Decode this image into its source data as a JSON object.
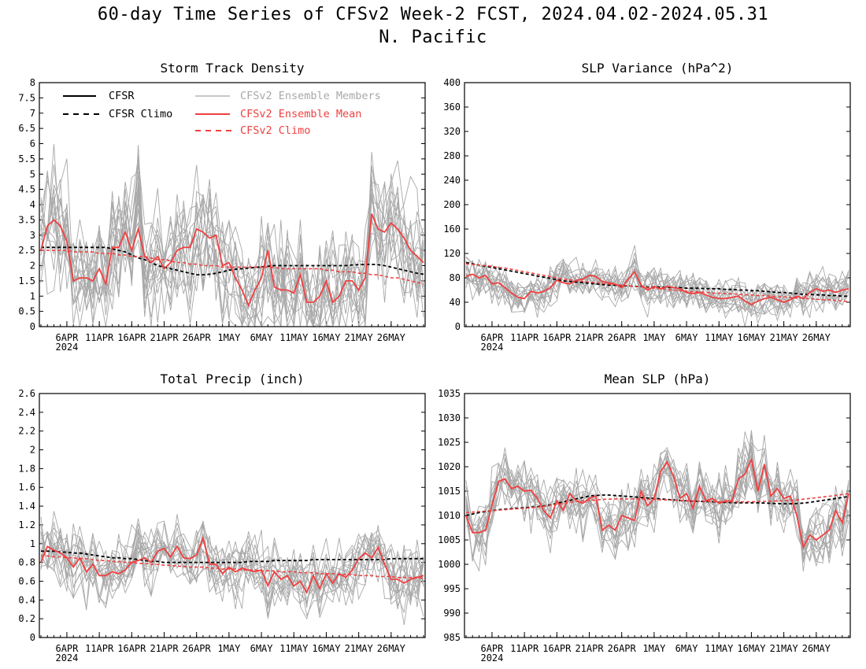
{
  "header": {
    "title": "60-day Time Series of CFSv2 Week-2 FCST, 2024.04.02-2024.05.31",
    "subtitle": "N. Pacific"
  },
  "legend": {
    "cfsr": "CFSR",
    "cfsr_climo": "CFSR Climo",
    "members": "CFSv2 Ensemble Members",
    "mean": "CFSv2 Ensemble Mean",
    "climo": "CFSv2 Climo",
    "colors": {
      "cfsr": "#000000",
      "members": "#a8a8a8",
      "mean": "#f04040",
      "climo": "#f04040"
    }
  },
  "chart_data": [
    {
      "type": "line",
      "title": "Storm Track Density",
      "ylim": [
        0,
        8
      ],
      "yticks": [
        "0",
        "0.5",
        "1",
        "1.5",
        "2",
        "2.5",
        "3",
        "3.5",
        "4",
        "4.5",
        "5",
        "5.5",
        "6",
        "6.5",
        "7",
        "7.5",
        "8"
      ],
      "xlim": [
        0,
        59
      ],
      "xticks": [
        {
          "x": 4,
          "label": "6APR",
          "sub": "2024"
        },
        {
          "x": 9,
          "label": "11APR"
        },
        {
          "x": 14,
          "label": "16APR"
        },
        {
          "x": 19,
          "label": "21APR"
        },
        {
          "x": 24,
          "label": "26APR"
        },
        {
          "x": 29,
          "label": "1MAY"
        },
        {
          "x": 34,
          "label": "6MAY"
        },
        {
          "x": 39,
          "label": "11MAY"
        },
        {
          "x": 44,
          "label": "16MAY"
        },
        {
          "x": 49,
          "label": "21MAY"
        },
        {
          "x": 54,
          "label": "26MAY"
        }
      ],
      "member_spread": 1.0,
      "series": [
        {
          "name": "CFSv2 Ensemble Mean",
          "role": "mean",
          "values": [
            2.5,
            3.3,
            3.5,
            3.3,
            2.8,
            1.5,
            1.6,
            1.6,
            1.5,
            1.9,
            1.4,
            2.6,
            2.6,
            3.1,
            2.5,
            3.2,
            2.3,
            2.1,
            2.3,
            1.9,
            2.1,
            2.5,
            2.6,
            2.6,
            3.2,
            3.1,
            2.9,
            3.0,
            2.0,
            2.1,
            1.6,
            1.2,
            0.7,
            1.2,
            1.6,
            2.5,
            1.3,
            1.2,
            1.2,
            1.1,
            1.7,
            0.8,
            0.8,
            1.0,
            1.5,
            0.8,
            1.0,
            1.5,
            1.5,
            1.2,
            1.6,
            3.7,
            3.2,
            3.1,
            3.4,
            3.2,
            2.9,
            2.5,
            2.3,
            2.1
          ]
        },
        {
          "name": "CFSR",
          "role": "cfsr",
          "values": [
            2.6,
            2.6,
            2.6,
            2.6,
            2.6,
            2.6,
            2.6,
            2.6,
            2.6,
            2.6,
            2.6,
            2.55,
            2.5,
            2.45,
            2.35,
            2.25,
            2.2,
            2.1,
            2.0,
            1.95,
            1.9,
            1.85,
            1.8,
            1.75,
            1.7,
            1.7,
            1.72,
            1.75,
            1.8,
            1.85,
            1.88,
            1.9,
            1.92,
            1.94,
            1.96,
            1.98,
            2.0,
            2.0,
            2.0,
            2.0,
            2.0,
            2.0,
            2.0,
            2.0,
            2.0,
            2.0,
            2.0,
            2.0,
            2.02,
            2.03,
            2.04,
            2.04,
            2.03,
            2.0,
            1.95,
            1.9,
            1.85,
            1.8,
            1.75,
            1.72
          ]
        },
        {
          "name": "CFSv2 Climo",
          "role": "climo",
          "values": [
            2.5,
            2.5,
            2.5,
            2.5,
            2.5,
            2.45,
            2.45,
            2.45,
            2.45,
            2.4,
            2.4,
            2.4,
            2.35,
            2.35,
            2.3,
            2.3,
            2.3,
            2.25,
            2.2,
            2.2,
            2.15,
            2.1,
            2.1,
            2.05,
            2.05,
            2.0,
            2.0,
            2.0,
            1.95,
            1.95,
            1.95,
            1.95,
            1.95,
            1.95,
            1.95,
            1.95,
            1.95,
            1.9,
            1.9,
            1.9,
            1.9,
            1.9,
            1.9,
            1.9,
            1.85,
            1.85,
            1.8,
            1.8,
            1.8,
            1.75,
            1.75,
            1.7,
            1.7,
            1.65,
            1.6,
            1.6,
            1.55,
            1.5,
            1.45,
            1.4
          ]
        }
      ]
    },
    {
      "type": "line",
      "title": "SLP Variance (hPa^2)",
      "ylim": [
        0,
        400
      ],
      "yticks": [
        "0",
        "40",
        "80",
        "120",
        "160",
        "200",
        "240",
        "280",
        "320",
        "360",
        "400"
      ],
      "xlim": [
        0,
        59
      ],
      "xticks": [
        {
          "x": 4,
          "label": "6APR",
          "sub": "2024"
        },
        {
          "x": 9,
          "label": "11APR"
        },
        {
          "x": 14,
          "label": "16APR"
        },
        {
          "x": 19,
          "label": "21APR"
        },
        {
          "x": 24,
          "label": "26APR"
        },
        {
          "x": 29,
          "label": "1MAY"
        },
        {
          "x": 34,
          "label": "6MAY"
        },
        {
          "x": 39,
          "label": "11MAY"
        },
        {
          "x": 44,
          "label": "16MAY"
        },
        {
          "x": 49,
          "label": "21MAY"
        },
        {
          "x": 54,
          "label": "26MAY"
        }
      ],
      "member_spread": 16,
      "series": [
        {
          "name": "CFSv2 Ensemble Mean",
          "role": "mean",
          "values": [
            82,
            86,
            80,
            84,
            70,
            72,
            64,
            55,
            48,
            46,
            58,
            55,
            58,
            64,
            76,
            72,
            70,
            76,
            78,
            84,
            82,
            74,
            72,
            70,
            64,
            78,
            90,
            68,
            60,
            66,
            62,
            66,
            64,
            62,
            56,
            54,
            56,
            52,
            48,
            46,
            46,
            48,
            50,
            42,
            36,
            42,
            46,
            48,
            44,
            40,
            44,
            50,
            46,
            56,
            62,
            58,
            60,
            56,
            60,
            62
          ]
        },
        {
          "name": "CFSR",
          "role": "cfsr",
          "values": [
            105,
            103,
            101,
            99,
            97,
            95,
            93,
            91,
            89,
            87,
            85,
            83,
            81,
            79,
            77,
            75,
            74,
            73,
            72,
            71,
            70,
            69,
            68,
            68,
            67,
            67,
            66,
            66,
            65,
            65,
            65,
            64,
            64,
            64,
            63,
            63,
            63,
            62,
            62,
            62,
            61,
            61,
            60,
            60,
            59,
            59,
            58,
            57,
            56,
            56,
            55,
            54,
            53,
            53,
            52,
            52,
            51,
            51,
            50,
            50
          ]
        },
        {
          "name": "CFSv2 Climo",
          "role": "climo",
          "values": [
            103,
            102,
            101,
            100,
            99,
            97,
            96,
            94,
            92,
            90,
            88,
            86,
            84,
            82,
            80,
            78,
            77,
            75,
            74,
            73,
            72,
            71,
            70,
            69,
            68,
            67,
            66,
            65,
            64,
            63,
            62,
            61,
            60,
            59,
            58,
            57,
            57,
            56,
            55,
            55,
            54,
            54,
            53,
            52,
            52,
            51,
            51,
            50,
            49,
            49,
            48,
            47,
            47,
            46,
            45,
            44,
            44,
            43,
            42,
            41
          ]
        }
      ]
    },
    {
      "type": "line",
      "title": "Total Precip (inch)",
      "ylim": [
        0,
        2.6
      ],
      "yticks": [
        "0",
        "0.2",
        "0.4",
        "0.6",
        "0.8",
        "1",
        "1.2",
        "1.4",
        "1.6",
        "1.8",
        "2",
        "2.2",
        "2.4",
        "2.6"
      ],
      "xlim": [
        0,
        59
      ],
      "xticks": [
        {
          "x": 4,
          "label": "6APR",
          "sub": "2024"
        },
        {
          "x": 9,
          "label": "11APR"
        },
        {
          "x": 14,
          "label": "16APR"
        },
        {
          "x": 19,
          "label": "21APR"
        },
        {
          "x": 24,
          "label": "26APR"
        },
        {
          "x": 29,
          "label": "1MAY"
        },
        {
          "x": 34,
          "label": "6MAY"
        },
        {
          "x": 39,
          "label": "11MAY"
        },
        {
          "x": 44,
          "label": "16MAY"
        },
        {
          "x": 49,
          "label": "21MAY"
        },
        {
          "x": 54,
          "label": "26MAY"
        }
      ],
      "member_spread": 0.17,
      "series": [
        {
          "name": "CFSv2 Ensemble Mean",
          "role": "mean",
          "values": [
            0.8,
            0.97,
            0.93,
            0.9,
            0.85,
            0.75,
            0.85,
            0.7,
            0.78,
            0.66,
            0.66,
            0.7,
            0.68,
            0.72,
            0.8,
            0.82,
            0.85,
            0.8,
            0.92,
            0.95,
            0.86,
            0.97,
            0.85,
            0.84,
            0.88,
            1.06,
            0.78,
            0.78,
            0.68,
            0.75,
            0.7,
            0.74,
            0.72,
            0.7,
            0.72,
            0.55,
            0.7,
            0.62,
            0.66,
            0.55,
            0.6,
            0.48,
            0.66,
            0.52,
            0.68,
            0.58,
            0.68,
            0.64,
            0.72,
            0.84,
            0.9,
            0.85,
            0.96,
            0.78,
            0.62,
            0.62,
            0.58,
            0.62,
            0.64,
            0.66
          ]
        },
        {
          "name": "CFSR",
          "role": "cfsr",
          "values": [
            0.92,
            0.92,
            0.92,
            0.91,
            0.91,
            0.9,
            0.9,
            0.89,
            0.88,
            0.87,
            0.86,
            0.85,
            0.85,
            0.84,
            0.84,
            0.83,
            0.82,
            0.81,
            0.81,
            0.8,
            0.8,
            0.8,
            0.8,
            0.8,
            0.8,
            0.8,
            0.8,
            0.8,
            0.8,
            0.8,
            0.8,
            0.8,
            0.81,
            0.81,
            0.81,
            0.81,
            0.82,
            0.82,
            0.82,
            0.82,
            0.82,
            0.82,
            0.83,
            0.83,
            0.83,
            0.83,
            0.83,
            0.83,
            0.83,
            0.83,
            0.83,
            0.83,
            0.83,
            0.83,
            0.84,
            0.84,
            0.84,
            0.84,
            0.84,
            0.84
          ]
        },
        {
          "name": "CFSv2 Climo",
          "role": "climo",
          "values": [
            0.87,
            0.87,
            0.86,
            0.86,
            0.85,
            0.85,
            0.84,
            0.84,
            0.83,
            0.82,
            0.82,
            0.81,
            0.81,
            0.8,
            0.8,
            0.79,
            0.79,
            0.78,
            0.78,
            0.77,
            0.77,
            0.76,
            0.76,
            0.75,
            0.75,
            0.75,
            0.74,
            0.74,
            0.73,
            0.73,
            0.73,
            0.72,
            0.72,
            0.72,
            0.71,
            0.71,
            0.71,
            0.7,
            0.7,
            0.7,
            0.69,
            0.69,
            0.69,
            0.68,
            0.68,
            0.68,
            0.67,
            0.67,
            0.67,
            0.66,
            0.66,
            0.66,
            0.65,
            0.65,
            0.65,
            0.64,
            0.64,
            0.64,
            0.64,
            0.63
          ]
        }
      ]
    },
    {
      "type": "line",
      "title": "Mean SLP (hPa)",
      "ylim": [
        985,
        1035
      ],
      "yticks": [
        "985",
        "990",
        "995",
        "1000",
        "1005",
        "1010",
        "1015",
        "1020",
        "1025",
        "1030",
        "1035"
      ],
      "xlim": [
        0,
        59
      ],
      "xticks": [
        {
          "x": 4,
          "label": "6APR",
          "sub": "2024"
        },
        {
          "x": 9,
          "label": "11APR"
        },
        {
          "x": 14,
          "label": "16APR"
        },
        {
          "x": 19,
          "label": "21APR"
        },
        {
          "x": 24,
          "label": "26APR"
        },
        {
          "x": 29,
          "label": "1MAY"
        },
        {
          "x": 34,
          "label": "6MAY"
        },
        {
          "x": 39,
          "label": "11MAY"
        },
        {
          "x": 44,
          "label": "16MAY"
        },
        {
          "x": 49,
          "label": "21MAY"
        },
        {
          "x": 54,
          "label": "26MAY"
        }
      ],
      "member_spread": 3.2,
      "series": [
        {
          "name": "CFSv2 Ensemble Mean",
          "role": "mean",
          "values": [
            1010,
            1006.5,
            1006.5,
            1007,
            1012,
            1017,
            1017.5,
            1015.5,
            1016,
            1015,
            1015.2,
            1013.5,
            1011,
            1009.5,
            1013,
            1011,
            1014.5,
            1013,
            1012.5,
            1013.5,
            1014,
            1007,
            1008,
            1007,
            1010,
            1009.5,
            1009,
            1015,
            1012,
            1013.5,
            1019,
            1021,
            1018,
            1013.5,
            1014.5,
            1011.5,
            1016,
            1013,
            1013.5,
            1012.5,
            1013,
            1013,
            1017.5,
            1018.5,
            1021.5,
            1015,
            1020.5,
            1014,
            1015.5,
            1013.5,
            1014,
            1010,
            1003.5,
            1006,
            1005,
            1006,
            1007,
            1011,
            1008.5,
            1014.5
          ]
        },
        {
          "name": "CFSR",
          "role": "cfsr",
          "values": [
            1010,
            1010.3,
            1010.6,
            1010.8,
            1011,
            1011.2,
            1011.3,
            1011.4,
            1011.5,
            1011.6,
            1011.7,
            1011.8,
            1012,
            1012.2,
            1012.5,
            1012.8,
            1013.1,
            1013.4,
            1013.7,
            1014,
            1014.1,
            1014.2,
            1014.2,
            1014.1,
            1014,
            1013.9,
            1013.8,
            1013.7,
            1013.6,
            1013.5,
            1013.4,
            1013.3,
            1013.2,
            1013.1,
            1013,
            1012.95,
            1012.9,
            1012.85,
            1012.8,
            1012.75,
            1012.7,
            1012.65,
            1012.6,
            1012.6,
            1012.6,
            1012.6,
            1012.55,
            1012.5,
            1012.45,
            1012.4,
            1012.4,
            1012.45,
            1012.55,
            1012.7,
            1012.9,
            1013.1,
            1013.3,
            1013.5,
            1013.7,
            1013.9
          ]
        },
        {
          "name": "CFSv2 Climo",
          "role": "climo",
          "values": [
            1010.6,
            1010.7,
            1010.8,
            1010.9,
            1011,
            1011.1,
            1011.2,
            1011.3,
            1011.4,
            1011.5,
            1011.6,
            1011.7,
            1011.9,
            1012.1,
            1012.3,
            1012.5,
            1012.7,
            1012.9,
            1013,
            1013.1,
            1013.2,
            1013.3,
            1013.35,
            1013.4,
            1013.4,
            1013.4,
            1013.4,
            1013.4,
            1013.35,
            1013.3,
            1013.25,
            1013.2,
            1013.15,
            1013.1,
            1013.05,
            1013,
            1012.95,
            1012.9,
            1012.85,
            1012.8,
            1012.8,
            1012.8,
            1012.8,
            1012.8,
            1012.8,
            1012.85,
            1012.9,
            1012.95,
            1013,
            1013.05,
            1013.1,
            1013.2,
            1013.35,
            1013.5,
            1013.65,
            1013.8,
            1013.95,
            1014.1,
            1014.3,
            1014.5
          ]
        }
      ]
    }
  ]
}
